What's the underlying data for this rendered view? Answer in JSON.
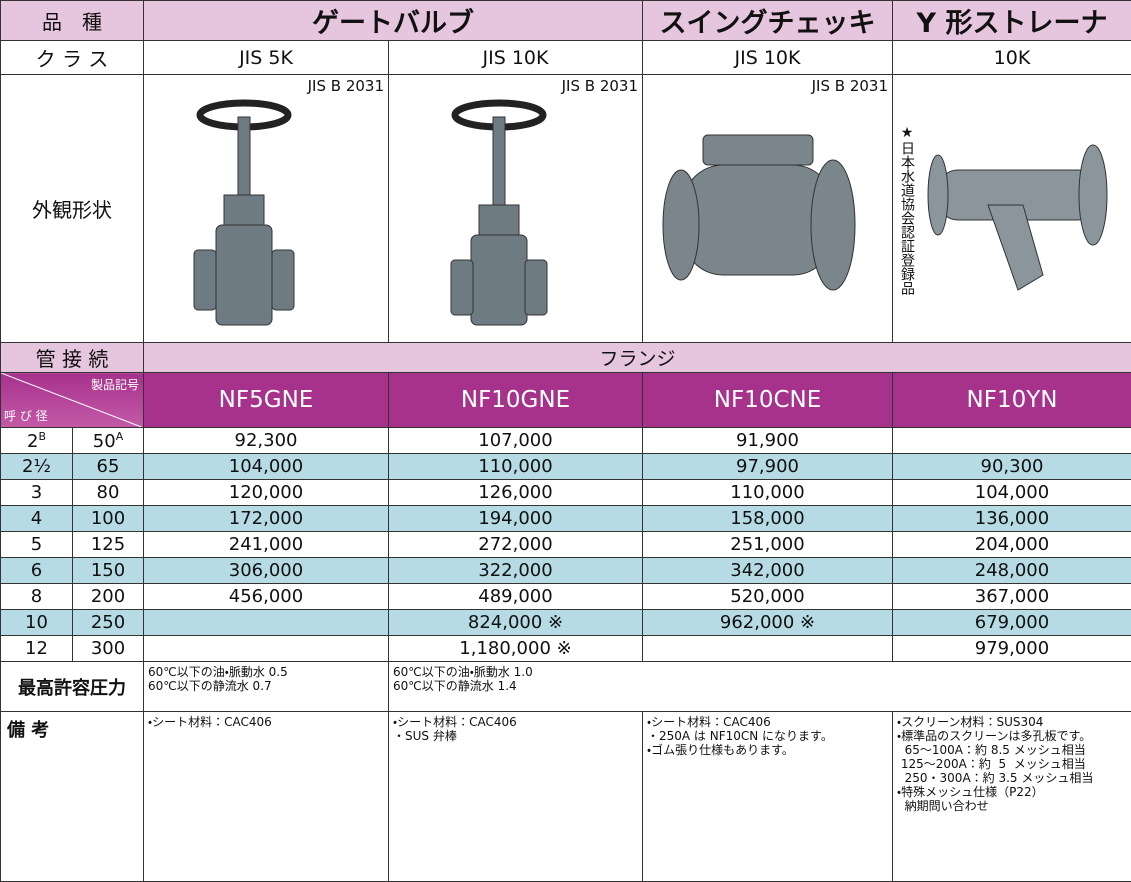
{
  "header": {
    "label": "品　種",
    "gate": "ゲートバルブ",
    "check": "スイングチェッキ",
    "strainer": "Y 形ストレーナ"
  },
  "class": {
    "label": "ク ラ ス",
    "values": [
      "JIS 5K",
      "JIS 10K",
      "JIS 10K",
      "10K"
    ]
  },
  "appearance": {
    "label": "外観形状",
    "standards": [
      "JIS B 2031",
      "JIS B 2031",
      "JIS B 2031"
    ],
    "certification": "★日本水道協会認証登録品"
  },
  "connection": {
    "label": "管 接 続",
    "value": "フランジ"
  },
  "models": {
    "corner_top": "製品記号",
    "corner_bottom": "呼 び 径",
    "values": [
      "NF5GNE",
      "NF10GNE",
      "NF10CNE",
      "NF10YN"
    ]
  },
  "size_units": {
    "inch": "B",
    "mm": "A"
  },
  "rows": [
    {
      "inch": "2",
      "mm": "50",
      "prices": [
        "92,300",
        "107,000",
        "91,900",
        null
      ]
    },
    {
      "inch": "2½",
      "mm": "65",
      "prices": [
        "104,000",
        "110,000",
        "97,900",
        "90,300"
      ]
    },
    {
      "inch": "3",
      "mm": "80",
      "prices": [
        "120,000",
        "126,000",
        "110,000",
        "104,000"
      ]
    },
    {
      "inch": "4",
      "mm": "100",
      "prices": [
        "172,000",
        "194,000",
        "158,000",
        "136,000"
      ]
    },
    {
      "inch": "5",
      "mm": "125",
      "prices": [
        "241,000",
        "272,000",
        "251,000",
        "204,000"
      ]
    },
    {
      "inch": "6",
      "mm": "150",
      "prices": [
        "306,000",
        "322,000",
        "342,000",
        "248,000"
      ]
    },
    {
      "inch": "8",
      "mm": "200",
      "prices": [
        "456,000",
        "489,000",
        "520,000",
        "367,000"
      ]
    },
    {
      "inch": "10",
      "mm": "250",
      "prices": [
        null,
        "824,000 ※",
        "962,000 ※",
        "679,000"
      ]
    },
    {
      "inch": "12",
      "mm": "300",
      "prices": [
        null,
        "1,180,000 ※",
        null,
        "979,000"
      ]
    }
  ],
  "pressure": {
    "label": "最高許容圧力",
    "values": [
      [
        "60℃以下の油・脈動水 0.5",
        "60℃以下の静流水 0.7"
      ],
      [
        "60℃以下の油・脈動水 1.0",
        "60℃以下の静流水 1.4"
      ]
    ]
  },
  "notes": {
    "label": "備 考",
    "values": [
      [
        "・シート材料：CAC406"
      ],
      [
        "・シート材料：CAC406",
        "・SUS 弁棒"
      ],
      [
        "・シート材料：CAC406",
        "・250A は NF10CN になります。",
        "・ゴム張り仕様もあります。"
      ],
      [
        "・スクリーン材料：SUS304",
        "・標準品のスクリーンは多孔板です。",
        "  65～100A：約 8.5 メッシュ相当",
        " 125～200A：約  5  メッシュ相当",
        "  250・300A：約 3.5 メッシュ相当",
        "・特殊メッシュ仕様（P22）",
        "  納期問い合わせ"
      ]
    ]
  }
}
